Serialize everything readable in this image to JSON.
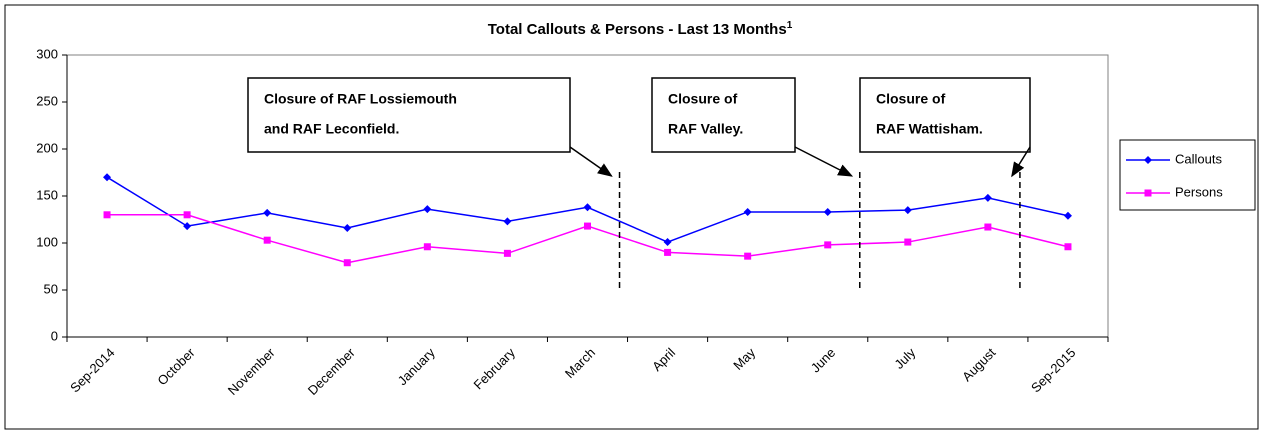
{
  "chart_data": {
    "type": "line",
    "title": "Total Callouts & Persons - Last 13 Months",
    "title_footnote": "1",
    "categories": [
      "Sep-2014",
      "October",
      "November",
      "December",
      "January",
      "February",
      "March",
      "April",
      "May",
      "June",
      "July",
      "August",
      "Sep-2015"
    ],
    "series": [
      {
        "name": "Callouts",
        "color": "#0000ff",
        "marker": "diamond",
        "values": [
          170,
          118,
          132,
          116,
          136,
          123,
          138,
          101,
          133,
          133,
          135,
          148,
          129
        ]
      },
      {
        "name": "Persons",
        "color": "#ff00ff",
        "marker": "square",
        "values": [
          130,
          130,
          103,
          79,
          96,
          89,
          118,
          90,
          86,
          98,
          101,
          117,
          96
        ]
      }
    ],
    "ylim": [
      0,
      300
    ],
    "yticks": [
      0,
      50,
      100,
      150,
      200,
      250,
      300
    ],
    "grid": false,
    "legend": "right",
    "annotations": [
      {
        "lines": [
          "Closure of RAF Lossiemouth",
          "and RAF Leconfield."
        ]
      },
      {
        "lines": [
          "Closure of",
          "RAF Valley."
        ]
      },
      {
        "lines": [
          "Closure  of",
          "RAF Wattisham."
        ]
      }
    ]
  }
}
